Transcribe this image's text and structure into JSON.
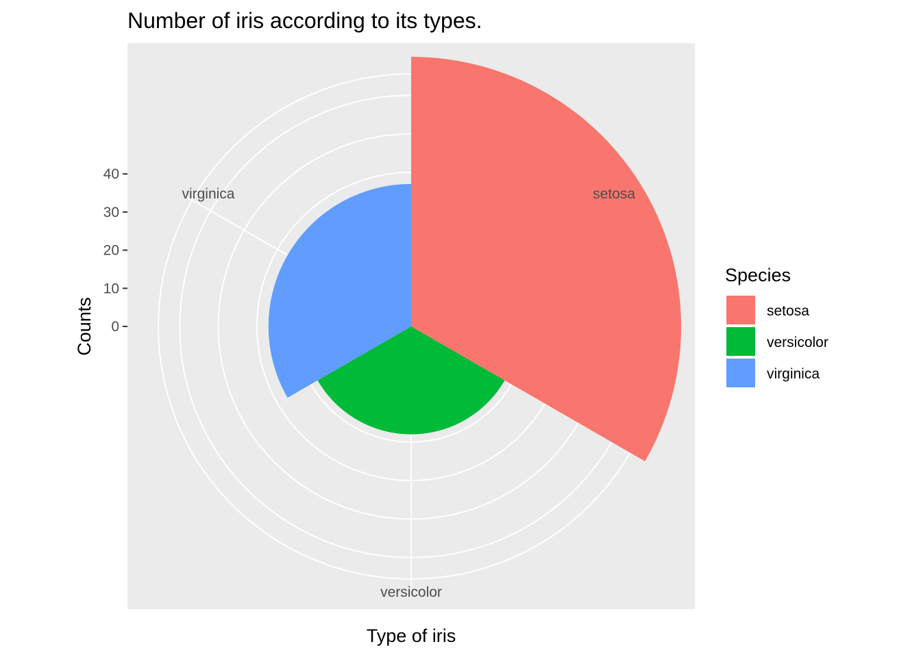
{
  "chart_data": {
    "type": "bar",
    "coord": "polar",
    "title": "Number of iris according to its types.",
    "xlabel": "Type of iris",
    "ylabel": "Counts",
    "categories": [
      "setosa",
      "versicolor",
      "virginica"
    ],
    "values": [
      50,
      8,
      17
    ],
    "colors": [
      "#F8766D",
      "#00BA38",
      "#619CFF"
    ],
    "y_ticks": [
      0,
      10,
      20,
      30,
      40
    ],
    "y_tick_labels": [
      "0",
      "10",
      "20",
      "30",
      "40"
    ],
    "ylim": [
      -20,
      50
    ],
    "grid": true,
    "legend": {
      "title": "Species",
      "position": "right",
      "entries": [
        "setosa",
        "versicolor",
        "virginica"
      ]
    }
  }
}
